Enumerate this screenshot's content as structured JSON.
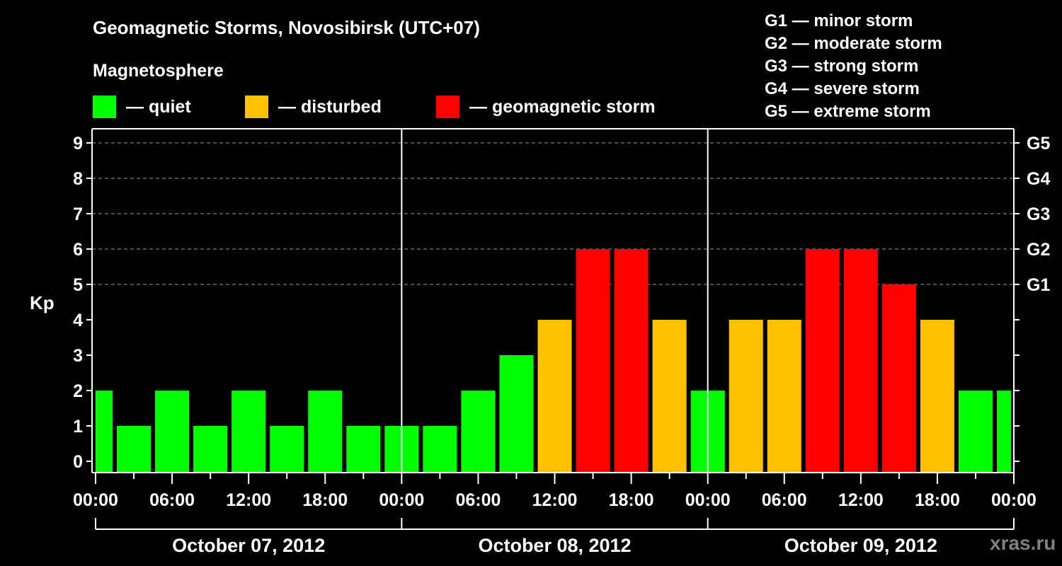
{
  "header": {
    "title": "Geomagnetic Storms, Novosibirsk (UTC+07)",
    "subtitle": "Magnetosphere"
  },
  "legend": [
    {
      "label": "— quiet",
      "color": "#00ff00"
    },
    {
      "label": "— disturbed",
      "color": "#ffc000"
    },
    {
      "label": "— geomagnetic storm",
      "color": "#ff0000"
    }
  ],
  "g_scale": [
    "G1 — minor storm",
    "G2 — moderate storm",
    "G3 — strong storm",
    "G4 — severe storm",
    "G5 — extreme storm"
  ],
  "watermark": "xras.ru",
  "chart_data": {
    "type": "bar",
    "title": "Geomagnetic Storms, Novosibirsk (UTC+07)",
    "xlabel": "",
    "ylabel": "Kp",
    "ylim": [
      0,
      9
    ],
    "y_ticks": [
      0,
      1,
      2,
      3,
      4,
      5,
      6,
      7,
      8,
      9
    ],
    "right_axis_labels": [
      {
        "kp": 5,
        "label": "G1"
      },
      {
        "kp": 6,
        "label": "G2"
      },
      {
        "kp": 7,
        "label": "G3"
      },
      {
        "kp": 8,
        "label": "G4"
      },
      {
        "kp": 9,
        "label": "G5"
      }
    ],
    "grid": "dashed horizontal at Kp 5-9",
    "x_tick_labels": [
      "00:00",
      "06:00",
      "12:00",
      "18:00",
      "00:00",
      "06:00",
      "12:00",
      "18:00",
      "00:00",
      "06:00",
      "12:00",
      "18:00",
      "00:00"
    ],
    "day_labels": [
      "October 07, 2012",
      "October 08, 2012",
      "October 09, 2012"
    ],
    "bar_interval_hours": 3,
    "first_bar_start_hour": -1.5,
    "categories": [
      "Oct07 00:00",
      "Oct07 03:00",
      "Oct07 06:00",
      "Oct07 09:00",
      "Oct07 12:00",
      "Oct07 15:00",
      "Oct07 18:00",
      "Oct07 21:00",
      "Oct08 00:00",
      "Oct08 03:00",
      "Oct08 06:00",
      "Oct08 09:00",
      "Oct08 12:00",
      "Oct08 15:00",
      "Oct08 18:00",
      "Oct08 21:00",
      "Oct09 00:00",
      "Oct09 03:00",
      "Oct09 06:00",
      "Oct09 09:00",
      "Oct09 12:00",
      "Oct09 15:00",
      "Oct09 18:00",
      "Oct09 21:00",
      "Oct10 00:00"
    ],
    "values": [
      2,
      1,
      2,
      1,
      2,
      1,
      2,
      1,
      1,
      1,
      2,
      3,
      4,
      6,
      6,
      4,
      2,
      4,
      4,
      6,
      6,
      5,
      4,
      2,
      2
    ],
    "levels": [
      "quiet",
      "quiet",
      "quiet",
      "quiet",
      "quiet",
      "quiet",
      "quiet",
      "quiet",
      "quiet",
      "quiet",
      "quiet",
      "quiet",
      "disturbed",
      "storm",
      "storm",
      "disturbed",
      "quiet",
      "disturbed",
      "disturbed",
      "storm",
      "storm",
      "storm",
      "disturbed",
      "quiet",
      "quiet"
    ],
    "colors": {
      "quiet": "#00ff00",
      "disturbed": "#ffc000",
      "storm": "#ff0000"
    }
  }
}
